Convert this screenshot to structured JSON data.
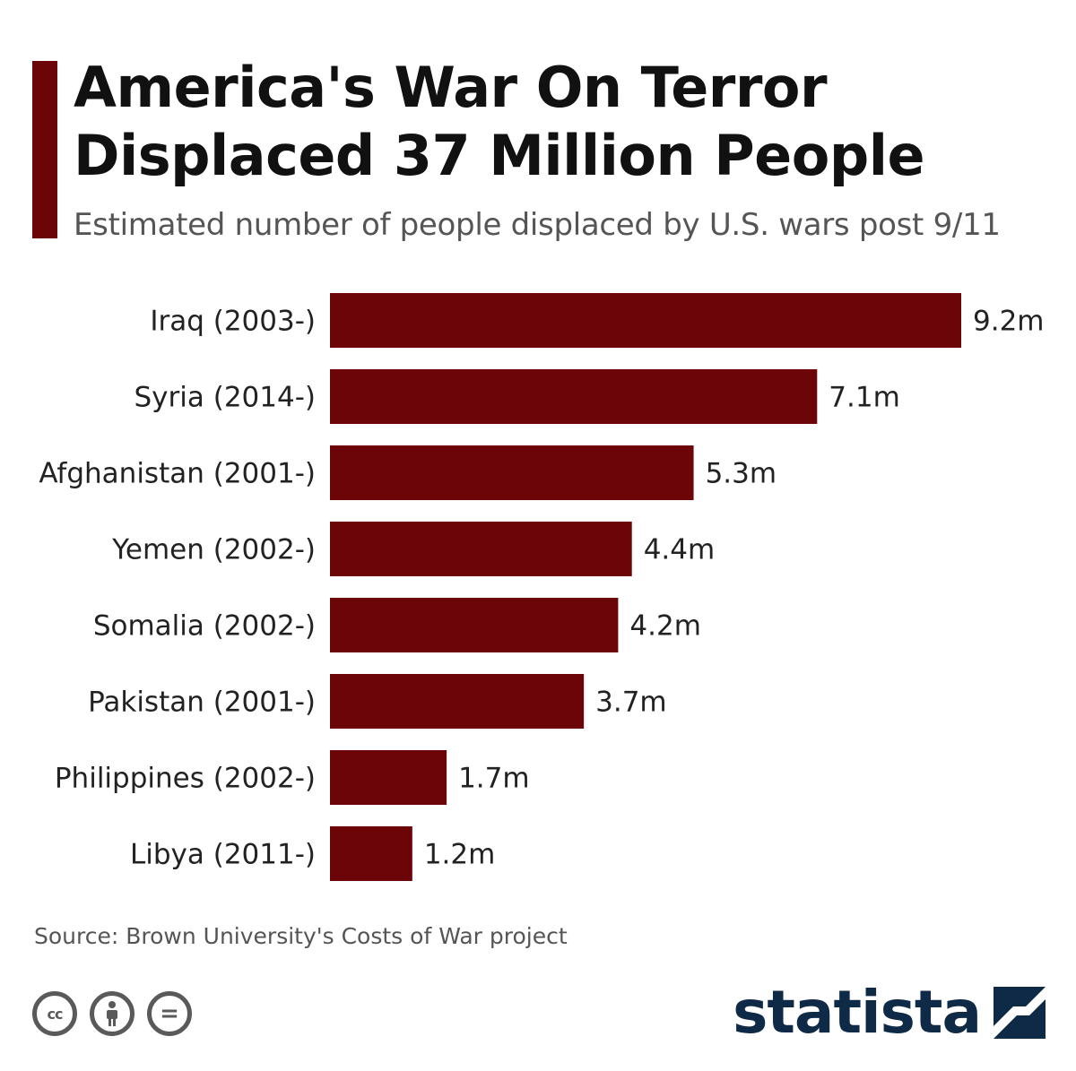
{
  "header": {
    "title_line1": "America's War On Terror",
    "title_line2": "Displaced 37 Million People",
    "subtitle": "Estimated number of people displaced by U.S. wars post 9/11"
  },
  "footer": {
    "source": "Source: Brown University's Costs of War project",
    "logo_text": "statista",
    "license_icons": [
      "cc-icon",
      "attribution-icon",
      "no-derivatives-icon"
    ],
    "cc_label": "cc",
    "nd_label": "="
  },
  "colors": {
    "bar": "#6b0508",
    "accent": "#6b0508",
    "logo": "#0e2a47"
  },
  "chart_data": {
    "type": "bar",
    "orientation": "horizontal",
    "title": "America's War On Terror Displaced 37 Million People",
    "subtitle": "Estimated number of people displaced by U.S. wars post 9/11",
    "categories": [
      "Iraq (2003-)",
      "Syria (2014-)",
      "Afghanistan (2001-)",
      "Yemen (2002-)",
      "Somalia (2002-)",
      "Pakistan (2001-)",
      "Philippines (2002-)",
      "Libya (2011-)"
    ],
    "values": [
      9.2,
      7.1,
      5.3,
      4.4,
      4.2,
      3.7,
      1.7,
      1.2
    ],
    "value_labels": [
      "9.2m",
      "7.1m",
      "5.3m",
      "4.4m",
      "4.2m",
      "3.7m",
      "1.7m",
      "1.2m"
    ],
    "unit": "million people",
    "xlim": [
      0,
      9.2
    ],
    "grid": false,
    "legend": "none"
  }
}
